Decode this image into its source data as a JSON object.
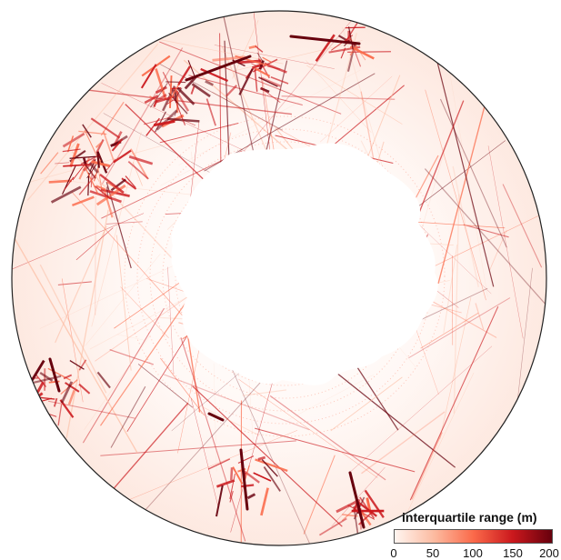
{
  "map": {
    "projection": "south polar stereographic",
    "background": "#ffffff",
    "land_color": "#ffffff",
    "tracks_style": "ship-track lines of elevated values"
  },
  "legend": {
    "title": "interquartile range (m)",
    "ticks": [
      "0",
      "50",
      "100",
      "150",
      "200"
    ],
    "range": [
      0,
      200
    ],
    "colors": [
      "#fff5f0",
      "#fcbba1",
      "#fb6a4a",
      "#cb181d",
      "#67000d"
    ]
  }
}
